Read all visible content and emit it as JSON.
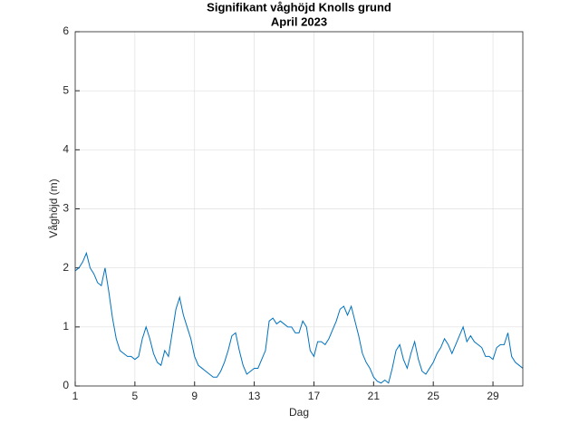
{
  "chart_data": {
    "type": "line",
    "title": "Signifikant våghöjd Knolls grund",
    "subtitle": "April 2023",
    "x_label": "Dag",
    "y_label": "Våghöjd (m)",
    "x": [
      1,
      1.25,
      1.5,
      1.75,
      2,
      2.25,
      2.5,
      2.75,
      3,
      3.25,
      3.5,
      3.75,
      4,
      4.25,
      4.5,
      4.75,
      5,
      5.25,
      5.5,
      5.75,
      6,
      6.25,
      6.5,
      6.75,
      7,
      7.25,
      7.5,
      7.75,
      8,
      8.25,
      8.5,
      8.75,
      9,
      9.25,
      9.5,
      9.75,
      10,
      10.25,
      10.5,
      10.75,
      11,
      11.25,
      11.5,
      11.75,
      12,
      12.25,
      12.5,
      12.75,
      13,
      13.25,
      13.5,
      13.75,
      14,
      14.25,
      14.5,
      14.75,
      15,
      15.25,
      15.5,
      15.75,
      16,
      16.25,
      16.5,
      16.75,
      17,
      17.25,
      17.5,
      17.75,
      18,
      18.25,
      18.5,
      18.75,
      19,
      19.25,
      19.5,
      19.75,
      20,
      20.25,
      20.5,
      20.75,
      21,
      21.25,
      21.5,
      21.75,
      22,
      22.25,
      22.5,
      22.75,
      23,
      23.25,
      23.5,
      23.75,
      24,
      24.25,
      24.5,
      24.75,
      25,
      25.25,
      25.5,
      25.75,
      26,
      26.25,
      26.5,
      26.75,
      27,
      27.25,
      27.5,
      27.75,
      28,
      28.25,
      28.5,
      28.75,
      29,
      29.25,
      29.5,
      29.75,
      30,
      30.25,
      30.5,
      30.75,
      31
    ],
    "series": [
      {
        "name": "Våghöjd",
        "color": "#0072bd",
        "values": [
          1.95,
          2.0,
          2.1,
          2.25,
          2.0,
          1.9,
          1.75,
          1.7,
          2.0,
          1.6,
          1.15,
          0.8,
          0.6,
          0.55,
          0.5,
          0.5,
          0.45,
          0.5,
          0.8,
          1.0,
          0.8,
          0.55,
          0.4,
          0.35,
          0.6,
          0.5,
          0.9,
          1.3,
          1.5,
          1.2,
          1.0,
          0.8,
          0.5,
          0.35,
          0.3,
          0.25,
          0.2,
          0.15,
          0.15,
          0.25,
          0.4,
          0.6,
          0.85,
          0.9,
          0.6,
          0.35,
          0.2,
          0.25,
          0.3,
          0.3,
          0.45,
          0.6,
          1.1,
          1.15,
          1.05,
          1.1,
          1.05,
          1.0,
          1.0,
          0.9,
          0.9,
          1.1,
          1.0,
          0.6,
          0.5,
          0.75,
          0.75,
          0.7,
          0.8,
          0.95,
          1.1,
          1.3,
          1.35,
          1.2,
          1.35,
          1.1,
          0.85,
          0.55,
          0.4,
          0.3,
          0.15,
          0.08,
          0.05,
          0.1,
          0.05,
          0.3,
          0.6,
          0.7,
          0.45,
          0.3,
          0.55,
          0.75,
          0.45,
          0.25,
          0.2,
          0.3,
          0.4,
          0.55,
          0.65,
          0.8,
          0.7,
          0.55,
          0.7,
          0.85,
          1.0,
          0.75,
          0.85,
          0.75,
          0.7,
          0.65,
          0.5,
          0.5,
          0.45,
          0.65,
          0.7,
          0.7,
          0.9,
          0.5,
          0.4,
          0.35,
          0.3
        ]
      }
    ],
    "xlim": [
      1,
      31
    ],
    "xticks": [
      1,
      5,
      9,
      13,
      17,
      21,
      25,
      29
    ],
    "ylim": [
      0,
      6
    ],
    "yticks": [
      0,
      1,
      2,
      3,
      4,
      5,
      6
    ],
    "grid": true
  }
}
